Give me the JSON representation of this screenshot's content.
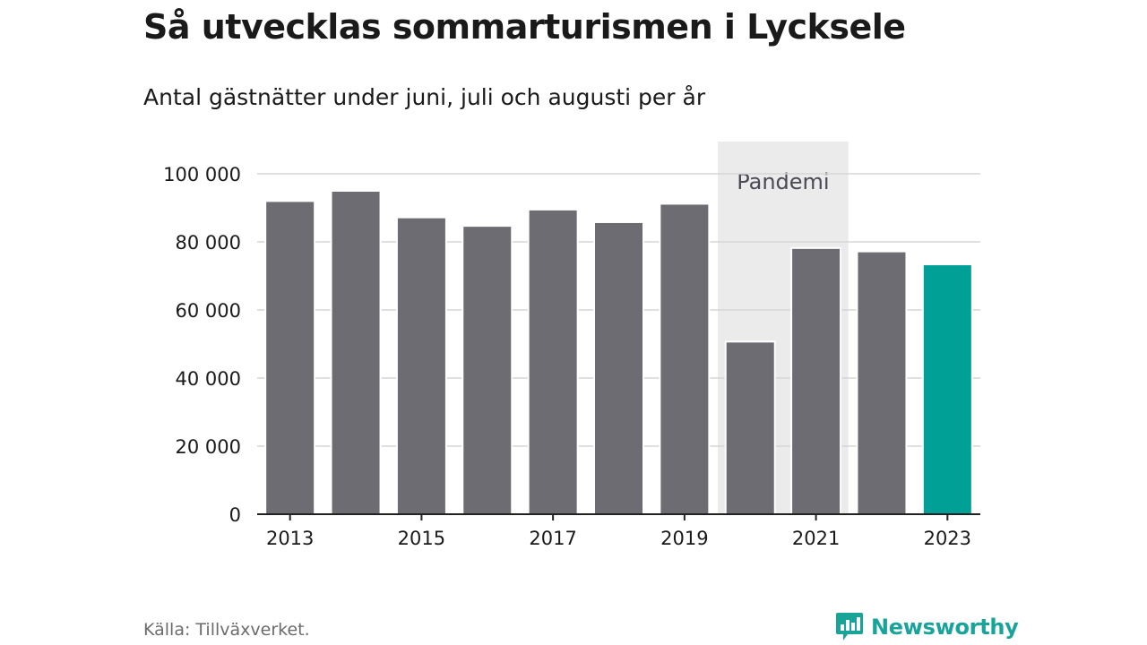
{
  "title": "Så utvecklas sommarturismen i Lycksele",
  "subtitle": "Antal gästnätter under juni, juli och augusti per år",
  "source": "Källa: Tillväxverket.",
  "brand": {
    "name": "Newsworthy",
    "icon": "newsworthy-logo-icon"
  },
  "colors": {
    "bar": "#6d6c72",
    "highlight": "#00a096",
    "shade": "#ebebeb",
    "grid": "#d6d6d6",
    "axis": "#222222",
    "brand": "#19a49a"
  },
  "chart_data": {
    "type": "bar",
    "categories": [
      "2013",
      "2014",
      "2015",
      "2016",
      "2017",
      "2018",
      "2019",
      "2020",
      "2021",
      "2022",
      "2023"
    ],
    "x_tick_labels": [
      "2013",
      "2015",
      "2017",
      "2019",
      "2021",
      "2023"
    ],
    "values": [
      92000,
      95000,
      87200,
      84700,
      89500,
      85800,
      91200,
      50700,
      78200,
      77200,
      73400
    ],
    "highlight_category": "2023",
    "ylim": [
      0,
      100000
    ],
    "y_tick_labels": [
      "0",
      "20 000",
      "40 000",
      "60 000",
      "80 000",
      "100 000"
    ],
    "y_ticks": [
      0,
      20000,
      40000,
      60000,
      80000,
      100000
    ],
    "grid": true,
    "annotation": {
      "label": "Pandemi",
      "from": "2020",
      "to": "2021"
    }
  }
}
